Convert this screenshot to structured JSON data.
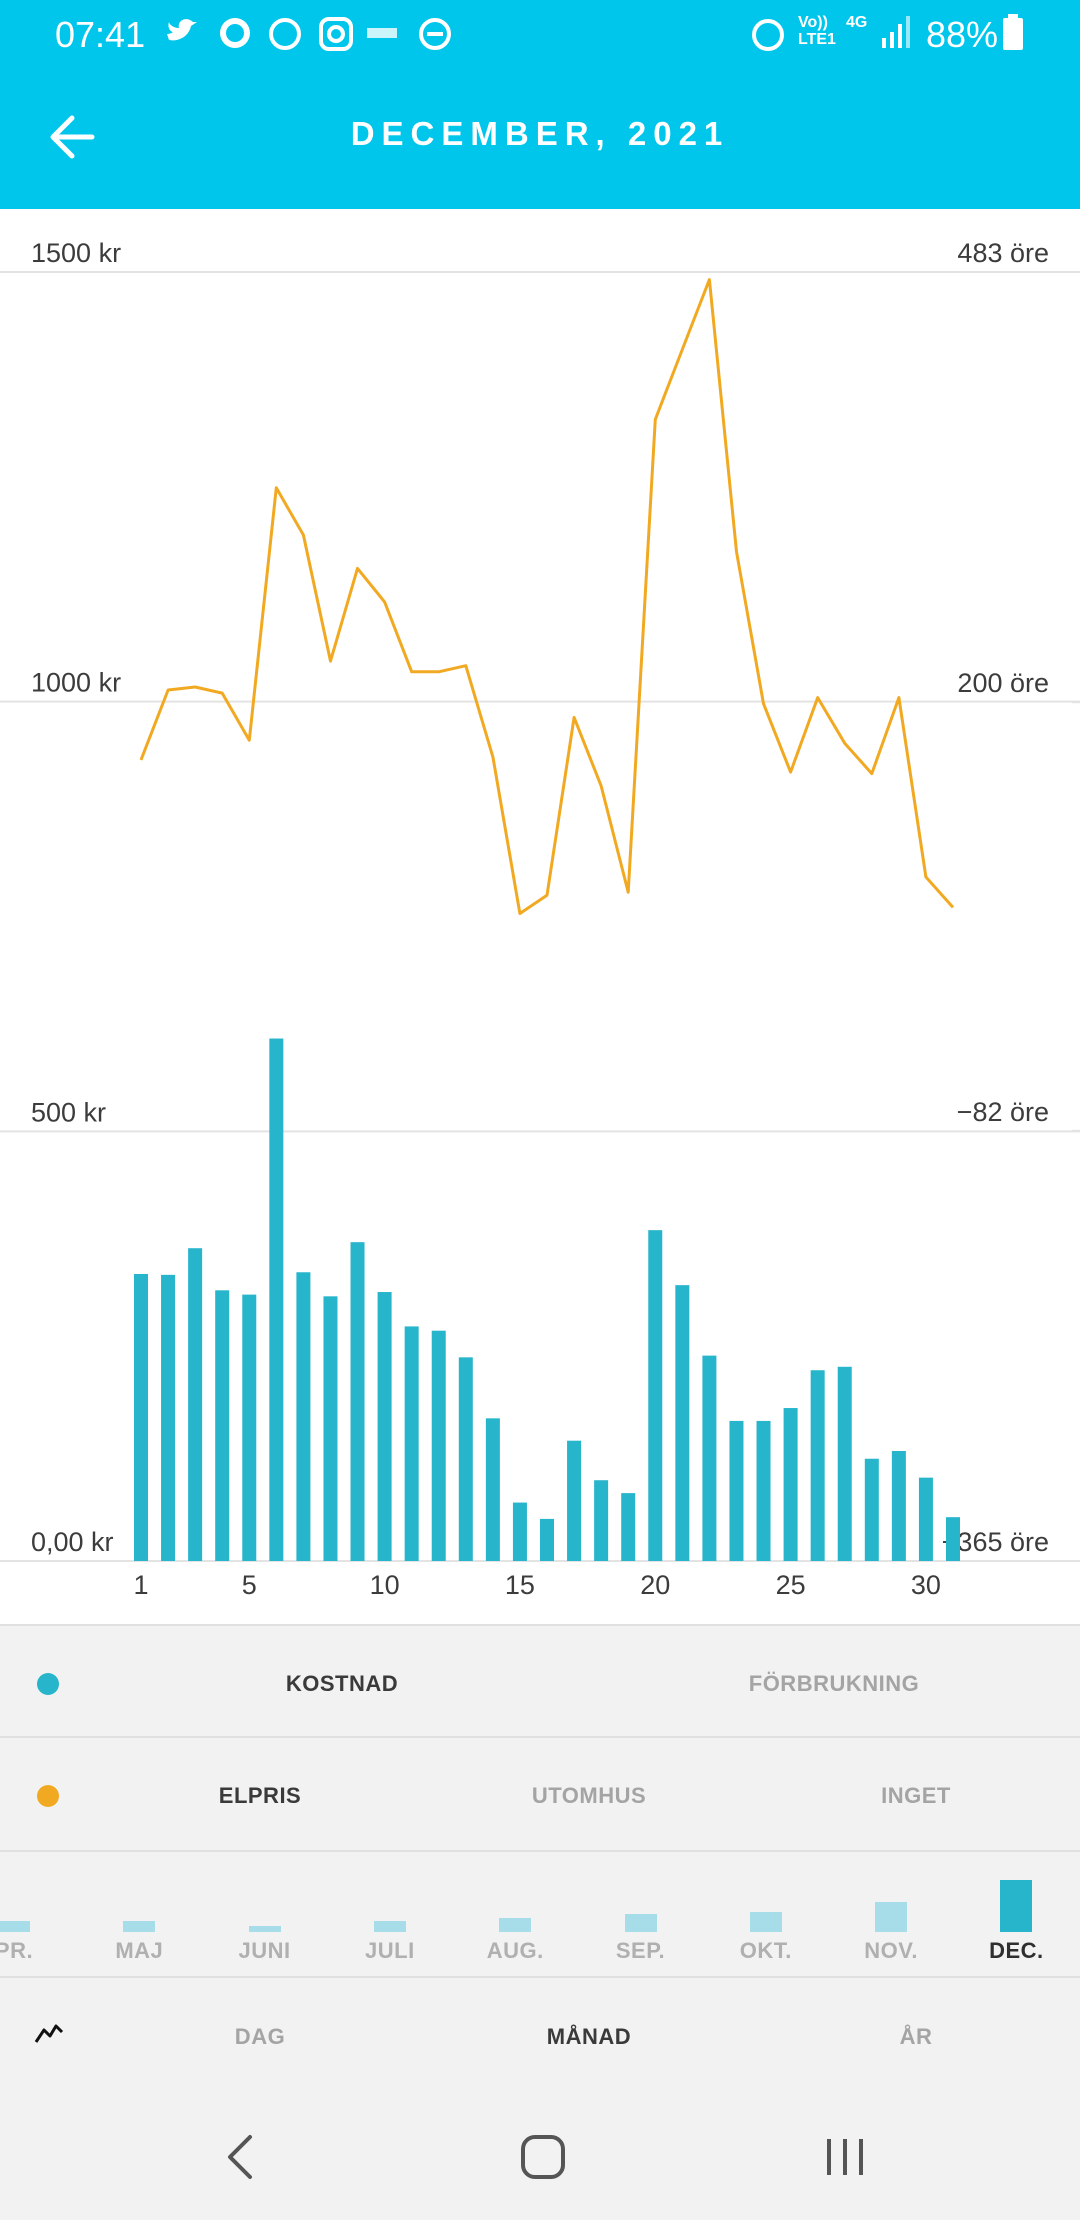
{
  "status_bar": {
    "time": "07:41",
    "volte": "Vo))",
    "lte": "LTE1",
    "network": "4G",
    "battery": "88%"
  },
  "header": {
    "title": "DECEMBER, 2021"
  },
  "chart_data": {
    "type": "bar",
    "x": [
      1,
      2,
      3,
      4,
      5,
      6,
      7,
      8,
      9,
      10,
      11,
      12,
      13,
      14,
      15,
      16,
      17,
      18,
      19,
      20,
      21,
      22,
      23,
      24,
      25,
      26,
      27,
      28,
      29,
      30,
      31
    ],
    "xlim": [
      1,
      31
    ],
    "xticks": [
      1,
      5,
      10,
      15,
      20,
      25,
      30
    ],
    "ylim": [
      0,
      1500
    ],
    "yticks": [
      {
        "value": 0,
        "label": "0,00 kr"
      },
      {
        "value": 500,
        "label": "500 kr"
      },
      {
        "value": 1000,
        "label": "1000 kr"
      },
      {
        "value": 1500,
        "label": "1500 kr"
      }
    ],
    "y2lim": [
      -365,
      483
    ],
    "y2ticks": [
      {
        "value": -365,
        "label": "−365 öre"
      },
      {
        "value": -82,
        "label": "−82 öre"
      },
      {
        "value": 200,
        "label": "200 öre"
      },
      {
        "value": 483,
        "label": "483 öre"
      }
    ],
    "grid": true,
    "series": [
      {
        "name": "KOSTNAD",
        "type": "bar",
        "color": "#26b5cb",
        "values": [
          334,
          333,
          364,
          315,
          310,
          608,
          336,
          308,
          371,
          313,
          273,
          268,
          237,
          166,
          68,
          49,
          140,
          94,
          79,
          385,
          321,
          239,
          163,
          163,
          178,
          222,
          226,
          119,
          128,
          97,
          51
        ]
      },
      {
        "name": "ELPRIS",
        "type": "line",
        "axis": "y2",
        "color": "#f2a922",
        "values": [
          162,
          208,
          210,
          206,
          175,
          341,
          310,
          227,
          288,
          266,
          220,
          220,
          224,
          164,
          61,
          73,
          190,
          145,
          75,
          386,
          432,
          478,
          299,
          199,
          154,
          203,
          173,
          153,
          203,
          85,
          65
        ]
      }
    ]
  },
  "metric_toggle": {
    "alternative": "FÖRBRUKNING"
  },
  "overlay_toggle": {
    "alternatives": [
      "UTOMHUS",
      "INGET"
    ]
  },
  "month_selector": {
    "months": [
      "PR.",
      "MAJ",
      "JUNI",
      "JULI",
      "AUG.",
      "SEP.",
      "OKT.",
      "NOV.",
      "DEC."
    ],
    "values": [
      1569,
      1569,
      785,
      1569,
      1962,
      2550,
      2746,
      4120,
      7258
    ]
  },
  "period_tabs": [
    "DAG",
    "MÅNAD",
    "ÅR"
  ]
}
